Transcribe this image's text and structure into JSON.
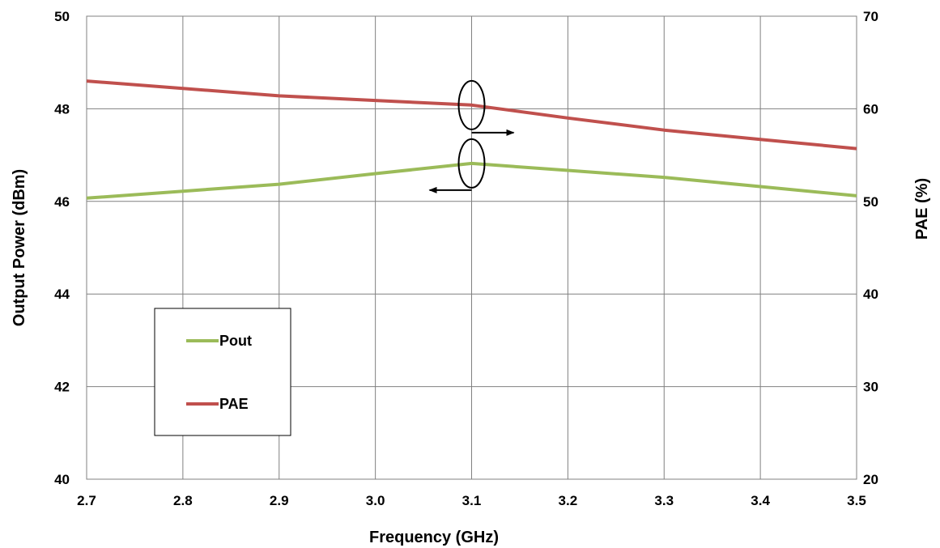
{
  "chart_data": {
    "type": "line",
    "title": "",
    "xlabel": "Frequency (GHz)",
    "ylabel_left": "Output Power  (dBm)",
    "ylabel_right": "PAE (%)",
    "x": [
      2.7,
      2.8,
      2.9,
      3.0,
      3.1,
      3.2,
      3.3,
      3.4,
      3.5
    ],
    "x_tick_labels": [
      "2.7",
      "2.8",
      "2.9",
      "3.0",
      "3.1",
      "3.2",
      "3.3",
      "3.4",
      "3.5"
    ],
    "xlim": [
      2.7,
      3.5
    ],
    "ylim_left": [
      40,
      50
    ],
    "ylim_right": [
      20,
      70
    ],
    "y_left_ticks": [
      "40",
      "42",
      "44",
      "46",
      "48",
      "50"
    ],
    "y_right_ticks": [
      "20",
      "30",
      "40",
      "50",
      "60",
      "70"
    ],
    "grid": true,
    "legend_position": "lower-left",
    "series": [
      {
        "name": "Pout",
        "axis": "left",
        "color": "#9bbb59",
        "values": [
          46.07,
          46.22,
          46.37,
          46.6,
          46.82,
          46.67,
          46.52,
          46.32,
          46.12
        ]
      },
      {
        "name": "PAE",
        "axis": "right",
        "color": "#c0504d",
        "values": [
          63.0,
          62.2,
          61.4,
          60.9,
          60.4,
          59.0,
          57.7,
          56.7,
          55.7
        ]
      }
    ],
    "annotations": [
      {
        "type": "ellipse-arrow",
        "series": "PAE",
        "x": 3.1,
        "direction": "right"
      },
      {
        "type": "ellipse-arrow",
        "series": "Pout",
        "x": 3.1,
        "direction": "left"
      }
    ]
  }
}
